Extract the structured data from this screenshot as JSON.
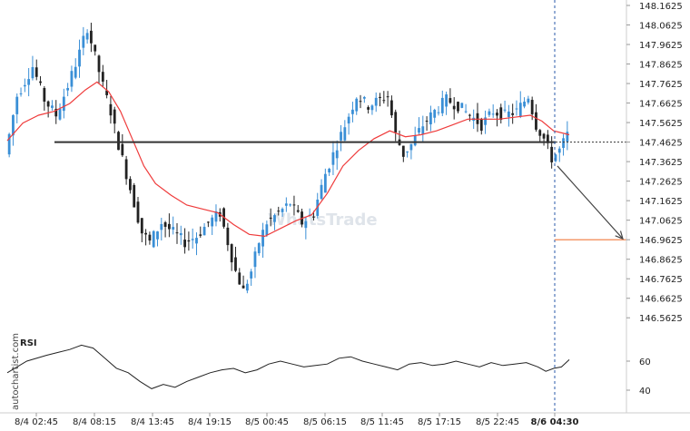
{
  "chart_data": {
    "type": "candlestick",
    "instrument": "",
    "y_axis": {
      "ticks": [
        148.1625,
        148.0625,
        147.9625,
        147.8625,
        147.7625,
        147.6625,
        147.5625,
        147.4625,
        147.3625,
        147.2625,
        147.1625,
        147.0625,
        146.9625,
        146.8625,
        146.7625,
        146.6625,
        146.5625
      ],
      "range": [
        146.5125,
        148.1625
      ],
      "position": "right"
    },
    "x_axis": {
      "ticks": [
        "8/4 02:45",
        "8/4 08:15",
        "8/4 13:45",
        "8/4 19:15",
        "8/5 00:45",
        "8/5 06:15",
        "8/5 11:45",
        "8/5 17:15",
        "8/5 22:45",
        "8/6 04:30"
      ],
      "highlighted_tick": "8/6 04:30"
    },
    "key_level": 147.4625,
    "target_level": 146.9625,
    "moving_average_color": "#ef3b3b",
    "key_level_color": "#333333",
    "target_color": "#f0793c",
    "up_color": "#3a8fd6",
    "down_color": "#222222",
    "price_path": [
      [
        0,
        147.4
      ],
      [
        3,
        147.7
      ],
      [
        7,
        147.85
      ],
      [
        10,
        147.68
      ],
      [
        13,
        147.6
      ],
      [
        16,
        147.75
      ],
      [
        19,
        147.92
      ],
      [
        21,
        148.05
      ],
      [
        23,
        147.9
      ],
      [
        25,
        147.75
      ],
      [
        27,
        147.62
      ],
      [
        29,
        147.45
      ],
      [
        31,
        147.3
      ],
      [
        33,
        147.15
      ],
      [
        35,
        147.0
      ],
      [
        37,
        146.95
      ],
      [
        40,
        147.05
      ],
      [
        43,
        147.0
      ],
      [
        46,
        146.95
      ],
      [
        49,
        146.98
      ],
      [
        52,
        147.05
      ],
      [
        55,
        147.1
      ],
      [
        57,
        146.95
      ],
      [
        59,
        146.8
      ],
      [
        61,
        146.7
      ],
      [
        63,
        146.8
      ],
      [
        65,
        146.95
      ],
      [
        67,
        147.05
      ],
      [
        70,
        147.1
      ],
      [
        73,
        147.15
      ],
      [
        76,
        147.05
      ],
      [
        79,
        147.1
      ],
      [
        82,
        147.3
      ],
      [
        85,
        147.45
      ],
      [
        88,
        147.6
      ],
      [
        90,
        147.7
      ],
      [
        93,
        147.65
      ],
      [
        96,
        147.68
      ],
      [
        98,
        147.7
      ],
      [
        100,
        147.5
      ],
      [
        102,
        147.4
      ],
      [
        104,
        147.45
      ],
      [
        107,
        147.55
      ],
      [
        110,
        147.62
      ],
      [
        113,
        147.68
      ],
      [
        116,
        147.65
      ],
      [
        119,
        147.6
      ],
      [
        122,
        147.55
      ],
      [
        125,
        147.62
      ],
      [
        128,
        147.6
      ],
      [
        131,
        147.62
      ],
      [
        134,
        147.7
      ],
      [
        136,
        147.55
      ],
      [
        138,
        147.48
      ],
      [
        140,
        147.38
      ],
      [
        142,
        147.42
      ],
      [
        144,
        147.5
      ]
    ],
    "moving_average": [
      [
        0,
        147.47
      ],
      [
        4,
        147.56
      ],
      [
        8,
        147.6
      ],
      [
        12,
        147.62
      ],
      [
        16,
        147.66
      ],
      [
        20,
        147.73
      ],
      [
        23,
        147.77
      ],
      [
        26,
        147.72
      ],
      [
        29,
        147.62
      ],
      [
        32,
        147.48
      ],
      [
        35,
        147.34
      ],
      [
        38,
        147.25
      ],
      [
        42,
        147.19
      ],
      [
        46,
        147.14
      ],
      [
        50,
        147.12
      ],
      [
        54,
        147.1
      ],
      [
        58,
        147.04
      ],
      [
        62,
        146.99
      ],
      [
        66,
        146.98
      ],
      [
        70,
        147.02
      ],
      [
        74,
        147.06
      ],
      [
        78,
        147.09
      ],
      [
        82,
        147.2
      ],
      [
        86,
        147.34
      ],
      [
        90,
        147.42
      ],
      [
        94,
        147.48
      ],
      [
        98,
        147.52
      ],
      [
        102,
        147.49
      ],
      [
        106,
        147.5
      ],
      [
        110,
        147.52
      ],
      [
        114,
        147.55
      ],
      [
        118,
        147.58
      ],
      [
        122,
        147.58
      ],
      [
        126,
        147.58
      ],
      [
        130,
        147.59
      ],
      [
        134,
        147.6
      ],
      [
        137,
        147.57
      ],
      [
        140,
        147.52
      ],
      [
        144,
        147.5
      ]
    ],
    "rsi": {
      "label": "RSI",
      "ticks": [
        60,
        40
      ],
      "range": [
        30,
        80
      ],
      "path": [
        [
          0,
          52
        ],
        [
          5,
          60
        ],
        [
          10,
          64
        ],
        [
          13,
          66
        ],
        [
          16,
          68
        ],
        [
          19,
          71
        ],
        [
          22,
          69
        ],
        [
          25,
          62
        ],
        [
          28,
          55
        ],
        [
          31,
          52
        ],
        [
          34,
          46
        ],
        [
          37,
          41
        ],
        [
          40,
          44
        ],
        [
          43,
          42
        ],
        [
          46,
          46
        ],
        [
          49,
          49
        ],
        [
          52,
          52
        ],
        [
          55,
          54
        ],
        [
          58,
          55
        ],
        [
          61,
          52
        ],
        [
          64,
          54
        ],
        [
          67,
          58
        ],
        [
          70,
          60
        ],
        [
          73,
          58
        ],
        [
          76,
          56
        ],
        [
          79,
          57
        ],
        [
          82,
          58
        ],
        [
          85,
          62
        ],
        [
          88,
          63
        ],
        [
          91,
          60
        ],
        [
          94,
          58
        ],
        [
          97,
          56
        ],
        [
          100,
          54
        ],
        [
          103,
          58
        ],
        [
          106,
          59
        ],
        [
          109,
          57
        ],
        [
          112,
          58
        ],
        [
          115,
          60
        ],
        [
          118,
          58
        ],
        [
          121,
          56
        ],
        [
          124,
          59
        ],
        [
          127,
          57
        ],
        [
          130,
          58
        ],
        [
          133,
          59
        ],
        [
          136,
          56
        ],
        [
          138,
          53
        ],
        [
          140,
          55
        ],
        [
          142,
          56
        ],
        [
          144,
          61
        ]
      ]
    }
  },
  "watermark": "WhatsTrade",
  "credit": "autochartist.com"
}
